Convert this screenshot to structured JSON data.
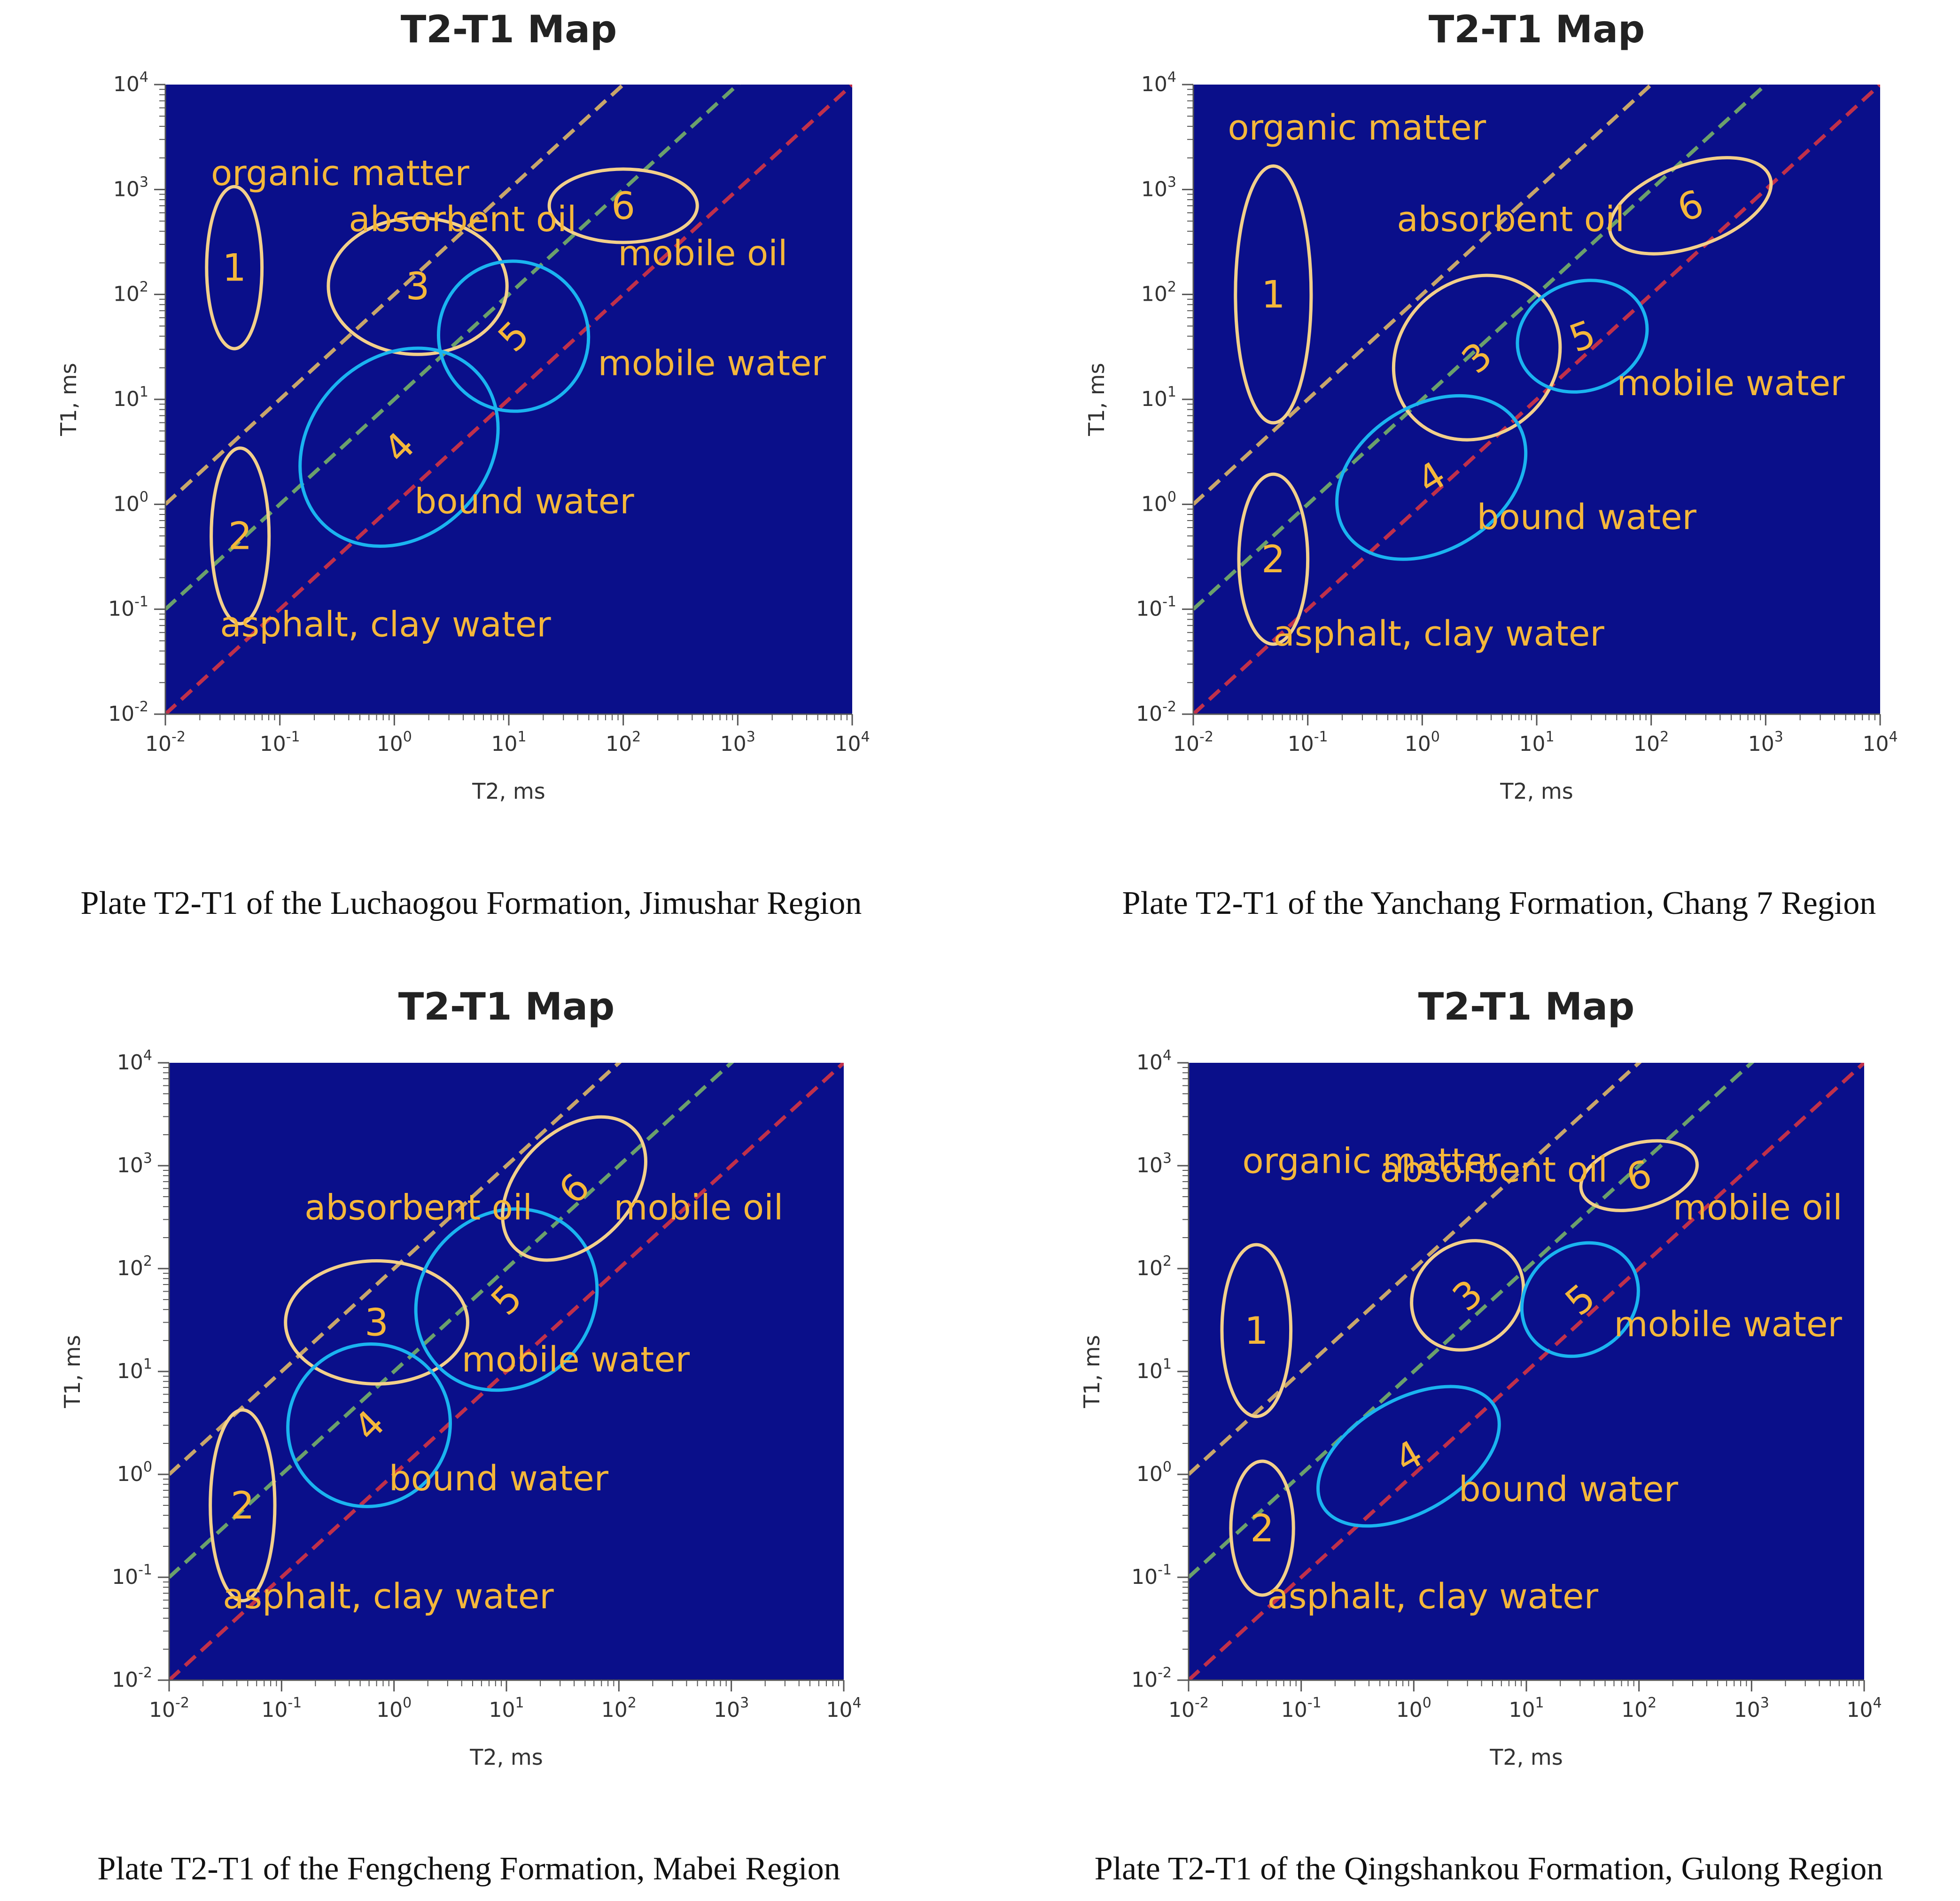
{
  "colors": {
    "plot_background": "#0a0f8a",
    "oil_ellipse": "#f3d08a",
    "water_ellipse": "#1ab4f0",
    "label_text": "#f5b73a",
    "cutoff_high": "#c8a66a",
    "cutoff_mid": "#6ba06b",
    "cutoff_low": "#c0304a"
  },
  "chart_data": [
    {
      "type": "scatter",
      "title": "T2-T1 Map",
      "caption": "Plate T2-T1 of the Luchaogou Formation, Jimushar Region",
      "xlabel": "T2, ms",
      "ylabel": "T1, ms",
      "x_scale": "log",
      "y_scale": "log",
      "xlim": [
        0.01,
        10000
      ],
      "ylim": [
        0.01,
        10000
      ],
      "grid": false,
      "cutoff_lines": [
        {
          "style": "dashed",
          "color": "#c8a66a",
          "T1_over_T2": 100
        },
        {
          "style": "dashed",
          "color": "#6ba06b",
          "T1_over_T2": 10
        },
        {
          "style": "dashed",
          "color": "#c0304a",
          "T1_over_T2": 1
        }
      ],
      "regions": [
        {
          "number": "1",
          "fluid": "oil",
          "T2_center": 0.04,
          "T1_center": 180,
          "T2_span": [
            0.023,
            0.07
          ],
          "T1_span": [
            30,
            1050
          ],
          "tilt_deg": 0
        },
        {
          "number": "2",
          "fluid": "oil",
          "T2_center": 0.045,
          "T1_center": 0.5,
          "T2_span": [
            0.025,
            0.08
          ],
          "T1_span": [
            0.07,
            3.3
          ],
          "tilt_deg": 0
        },
        {
          "number": "3",
          "fluid": "oil",
          "T2_center": 1.6,
          "T1_center": 120,
          "T2_span": [
            0.22,
            8
          ],
          "T1_span": [
            25,
            500
          ],
          "tilt_deg": 0
        },
        {
          "number": "4",
          "fluid": "water",
          "T2_center": 1.1,
          "T1_center": 3.5,
          "T2_span": [
            0.13,
            10
          ],
          "T1_span": [
            0.5,
            25
          ],
          "tilt_deg": -45
        },
        {
          "number": "5",
          "fluid": "water",
          "T2_center": 11,
          "T1_center": 40,
          "T2_span": [
            2.5,
            50
          ],
          "T1_span": [
            8,
            220
          ],
          "tilt_deg": -45
        },
        {
          "number": "6",
          "fluid": "oil",
          "T2_center": 100,
          "T1_center": 700,
          "T2_span": [
            28,
            550
          ],
          "T1_span": [
            300,
            1500
          ],
          "tilt_deg": 0
        }
      ],
      "annotations": [
        {
          "text": "organic matter",
          "T2": 0.025,
          "T1": 1100
        },
        {
          "text": "absorbent oil",
          "T2": 0.4,
          "T1": 400
        },
        {
          "text": "mobile oil",
          "T2": 90,
          "T1": 190
        },
        {
          "text": "mobile water",
          "T2": 60,
          "T1": 17
        },
        {
          "text": "bound water",
          "T2": 1.5,
          "T1": 0.82
        },
        {
          "text": "asphalt, clay water",
          "T2": 0.03,
          "T1": 0.055
        }
      ]
    },
    {
      "type": "scatter",
      "title": "T2-T1 Map",
      "caption": "Plate T2-T1 of the Yanchang Formation, Chang 7 Region",
      "xlabel": "T2, ms",
      "ylabel": "T1, ms",
      "x_scale": "log",
      "y_scale": "log",
      "xlim": [
        0.01,
        10000
      ],
      "ylim": [
        0.01,
        10000
      ],
      "grid": false,
      "cutoff_lines": [
        {
          "style": "dashed",
          "color": "#c8a66a",
          "T1_over_T2": 100
        },
        {
          "style": "dashed",
          "color": "#6ba06b",
          "T1_over_T2": 10
        },
        {
          "style": "dashed",
          "color": "#c0304a",
          "T1_over_T2": 1
        }
      ],
      "regions": [
        {
          "number": "1",
          "fluid": "oil",
          "T2_center": 0.05,
          "T1_center": 100,
          "T2_span": [
            0.024,
            0.11
          ],
          "T1_span": [
            5,
            1400
          ],
          "tilt_deg": 0
        },
        {
          "number": "2",
          "fluid": "oil",
          "T2_center": 0.05,
          "T1_center": 0.3,
          "T2_span": [
            0.025,
            0.1
          ],
          "T1_span": [
            0.12,
            5
          ],
          "tilt_deg": 0
        },
        {
          "number": "3",
          "fluid": "oil",
          "T2_center": 3,
          "T1_center": 25,
          "T2_span": [
            0.5,
            17
          ],
          "T1_span": [
            4,
            120
          ],
          "tilt_deg": -42
        },
        {
          "number": "4",
          "fluid": "water",
          "T2_center": 1.2,
          "T1_center": 1.8,
          "T2_span": [
            0.15,
            9
          ],
          "T1_span": [
            0.25,
            6
          ],
          "tilt_deg": -32
        },
        {
          "number": "5",
          "fluid": "water",
          "T2_center": 25,
          "T1_center": 40,
          "T2_span": [
            7,
            100
          ],
          "T1_span": [
            12,
            130
          ],
          "tilt_deg": -20
        },
        {
          "number": "6",
          "fluid": "oil",
          "T2_center": 220,
          "T1_center": 700,
          "T2_span": [
            40,
            1200
          ],
          "T1_span": [
            300,
            1800
          ],
          "tilt_deg": -20
        }
      ],
      "annotations": [
        {
          "text": "organic matter",
          "T2": 0.02,
          "T1": 3000
        },
        {
          "text": "absorbent oil",
          "T2": 0.6,
          "T1": 400
        },
        {
          "text": "mobile water",
          "T2": 50,
          "T1": 11
        },
        {
          "text": "bound water",
          "T2": 3,
          "T1": 0.58
        },
        {
          "text": "asphalt, clay water",
          "T2": 0.05,
          "T1": 0.045
        }
      ]
    },
    {
      "type": "scatter",
      "title": "T2-T1 Map",
      "caption": "Plate T2-T1 of the Fengcheng Formation, Mabei Region",
      "xlabel": "T2, ms",
      "ylabel": "T1, ms",
      "x_scale": "log",
      "y_scale": "log",
      "xlim": [
        0.01,
        10000
      ],
      "ylim": [
        0.01,
        10000
      ],
      "grid": false,
      "cutoff_lines": [
        {
          "style": "dashed",
          "color": "#c8a66a",
          "T1_over_T2": 100
        },
        {
          "style": "dashed",
          "color": "#6ba06b",
          "T1_over_T2": 10
        },
        {
          "style": "dashed",
          "color": "#c0304a",
          "T1_over_T2": 1
        }
      ],
      "regions": [
        {
          "number": "2",
          "fluid": "oil",
          "T2_center": 0.045,
          "T1_center": 0.5,
          "T2_span": [
            0.024,
            0.09
          ],
          "T1_span": [
            0.07,
            5
          ],
          "tilt_deg": 0
        },
        {
          "number": "3",
          "fluid": "oil",
          "T2_center": 0.7,
          "T1_center": 30,
          "T2_span": [
            0.12,
            5
          ],
          "T1_span": [
            7,
            110
          ],
          "tilt_deg": 0
        },
        {
          "number": "4",
          "fluid": "water",
          "T2_center": 0.6,
          "T1_center": 3,
          "T2_span": [
            0.12,
            3.5
          ],
          "T1_span": [
            0.5,
            18
          ],
          "tilt_deg": -45
        },
        {
          "number": "5",
          "fluid": "water",
          "T2_center": 10,
          "T1_center": 50,
          "T2_span": [
            2,
            100
          ],
          "T1_span": [
            7,
            320
          ],
          "tilt_deg": -45
        },
        {
          "number": "6",
          "fluid": "oil",
          "T2_center": 40,
          "T1_center": 600,
          "T2_span": [
            8,
            250
          ],
          "T1_span": [
            160,
            2000
          ],
          "tilt_deg": -45
        }
      ],
      "annotations": [
        {
          "text": "absorbent oil",
          "T2": 0.16,
          "T1": 300
        },
        {
          "text": "mobile oil",
          "T2": 90,
          "T1": 300
        },
        {
          "text": "mobile water",
          "T2": 4,
          "T1": 10
        },
        {
          "text": "bound water",
          "T2": 0.9,
          "T1": 0.7
        },
        {
          "text": "asphalt, clay water",
          "T2": 0.03,
          "T1": 0.05
        }
      ]
    },
    {
      "type": "scatter",
      "title": "T2-T1 Map",
      "caption": "Plate T2-T1 of the Qingshankou Formation, Gulong Region",
      "xlabel": "T2, ms",
      "ylabel": "T1, ms",
      "x_scale": "log",
      "y_scale": "log",
      "xlim": [
        0.01,
        10000
      ],
      "ylim": [
        0.01,
        10000
      ],
      "grid": false,
      "cutoff_lines": [
        {
          "style": "dashed",
          "color": "#c8a66a",
          "T1_over_T2": 100
        },
        {
          "style": "dashed",
          "color": "#6ba06b",
          "T1_over_T2": 10
        },
        {
          "style": "dashed",
          "color": "#c0304a",
          "T1_over_T2": 1
        }
      ],
      "regions": [
        {
          "number": "1",
          "fluid": "oil",
          "T2_center": 0.04,
          "T1_center": 25,
          "T2_span": [
            0.022,
            0.09
          ],
          "T1_span": [
            3,
            140
          ],
          "tilt_deg": 0
        },
        {
          "number": "2",
          "fluid": "oil",
          "T2_center": 0.045,
          "T1_center": 0.3,
          "T2_span": [
            0.025,
            0.09
          ],
          "T1_span": [
            0.1,
            2
          ],
          "tilt_deg": 0
        },
        {
          "number": "3",
          "fluid": "oil",
          "T2_center": 3,
          "T1_center": 55,
          "T2_span": [
            0.9,
            10
          ],
          "T1_span": [
            20,
            200
          ],
          "tilt_deg": -40
        },
        {
          "number": "4",
          "fluid": "water",
          "T2_center": 0.9,
          "T1_center": 1.5,
          "T2_span": [
            0.12,
            7
          ],
          "T1_span": [
            0.4,
            5
          ],
          "tilt_deg": -30
        },
        {
          "number": "5",
          "fluid": "water",
          "T2_center": 30,
          "T1_center": 50,
          "T2_span": [
            8,
            100
          ],
          "T1_span": [
            15,
            160
          ],
          "tilt_deg": -40
        },
        {
          "number": "6",
          "fluid": "oil",
          "T2_center": 100,
          "T1_center": 800,
          "T2_span": [
            35,
            400
          ],
          "T1_span": [
            400,
            1700
          ],
          "tilt_deg": -15
        }
      ],
      "annotations": [
        {
          "text": "organic matter",
          "T2": 0.03,
          "T1": 850
        },
        {
          "text": "absorbent oil",
          "T2": 0.5,
          "T1": 700
        },
        {
          "text": "mobile oil",
          "T2": 200,
          "T1": 300
        },
        {
          "text": "mobile water",
          "T2": 60,
          "T1": 22
        },
        {
          "text": "bound water",
          "T2": 2.5,
          "T1": 0.55
        },
        {
          "text": "asphalt, clay water",
          "T2": 0.05,
          "T1": 0.05
        }
      ]
    }
  ]
}
